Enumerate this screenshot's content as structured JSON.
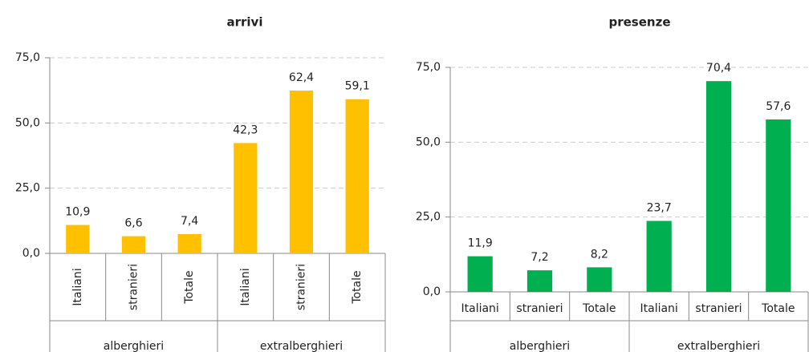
{
  "chart_data": [
    {
      "type": "bar",
      "title": "arrivi",
      "categories": [
        "Italiani",
        "stranieri",
        "Totale",
        "Italiani",
        "stranieri",
        "Totale"
      ],
      "groups": [
        "alberghieri",
        "extralberghieri"
      ],
      "values": [
        10.9,
        6.6,
        7.4,
        42.3,
        62.4,
        59.1
      ],
      "value_labels": [
        "10,9",
        "6,6",
        "7,4",
        "42,3",
        "62,4",
        "59,1"
      ],
      "color": "#ffc000",
      "ylim": [
        0,
        75
      ],
      "yticks": [
        {
          "value": 0,
          "label": "0,0"
        },
        {
          "value": 25,
          "label": "25,0"
        },
        {
          "value": 50,
          "label": "50,0"
        },
        {
          "value": 75,
          "label": "75,0"
        }
      ],
      "grid": true
    },
    {
      "type": "bar",
      "title": "presenze",
      "categories": [
        "Italiani",
        "stranieri",
        "Totale",
        "Italiani",
        "stranieri",
        "Totale"
      ],
      "groups": [
        "alberghieri",
        "extralberghieri"
      ],
      "values": [
        11.9,
        7.2,
        8.2,
        23.7,
        70.4,
        57.6
      ],
      "value_labels": [
        "11,9",
        "7,2",
        "8,2",
        "23,7",
        "70,4",
        "57,6"
      ],
      "color": "#00b050",
      "ylim": [
        0,
        75
      ],
      "yticks": [
        {
          "value": 0,
          "label": "0,0"
        },
        {
          "value": 25,
          "label": "25,0"
        },
        {
          "value": 50,
          "label": "50,0"
        },
        {
          "value": 75,
          "label": "75,0"
        }
      ],
      "grid": true
    }
  ]
}
